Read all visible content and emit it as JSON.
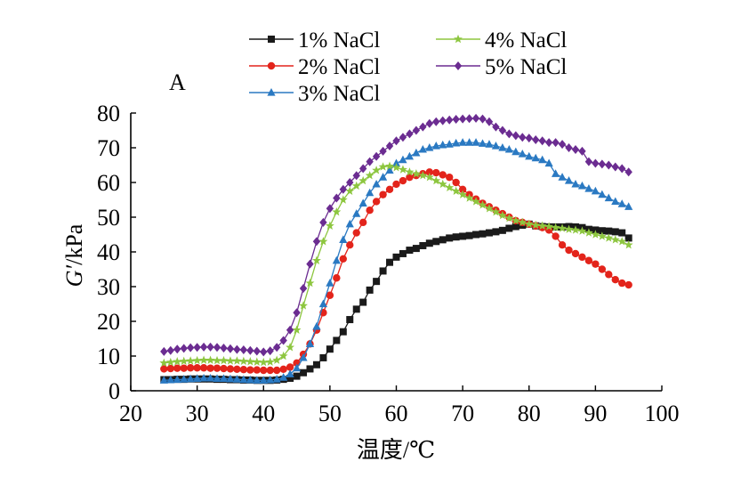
{
  "chart_data": {
    "type": "line",
    "panel_label": "A",
    "xlabel": "温度/℃",
    "ylabel_main": "G′",
    "ylabel_unit": "/kPa",
    "xlim": [
      20,
      100
    ],
    "ylim": [
      0,
      80
    ],
    "xticks": [
      20,
      30,
      40,
      50,
      60,
      70,
      80,
      90,
      100
    ],
    "yticks": [
      0,
      10,
      20,
      30,
      40,
      50,
      60,
      70,
      80
    ],
    "grid": false,
    "legend_position": "top, two columns",
    "x": [
      25,
      26,
      27,
      28,
      29,
      30,
      31,
      32,
      33,
      34,
      35,
      36,
      37,
      38,
      39,
      40,
      41,
      42,
      43,
      44,
      45,
      46,
      47,
      48,
      49,
      50,
      51,
      52,
      53,
      54,
      55,
      56,
      57,
      58,
      59,
      60,
      61,
      62,
      63,
      64,
      65,
      66,
      67,
      68,
      69,
      70,
      71,
      72,
      73,
      74,
      75,
      76,
      77,
      78,
      79,
      80,
      81,
      82,
      83,
      84,
      85,
      86,
      87,
      88,
      89,
      90,
      91,
      92,
      93,
      94,
      95
    ],
    "series": [
      {
        "name": "1% NaCl",
        "color": "#1a1a1a",
        "marker": "square",
        "values": [
          3.2,
          3.2,
          3.3,
          3.3,
          3.4,
          3.4,
          3.4,
          3.4,
          3.3,
          3.3,
          3.2,
          3.2,
          3.1,
          3.1,
          3.0,
          3.0,
          3.0,
          3.1,
          3.3,
          3.6,
          4.2,
          5.2,
          6.3,
          7.5,
          9.5,
          12.0,
          14.5,
          17.0,
          20.5,
          23.5,
          25.5,
          29.0,
          31.5,
          34.5,
          37.0,
          38.5,
          39.5,
          40.5,
          41.0,
          41.8,
          42.5,
          43.0,
          43.5,
          44.0,
          44.3,
          44.5,
          44.7,
          45.0,
          45.2,
          45.5,
          45.8,
          46.2,
          46.8,
          47.3,
          47.7,
          48.0,
          47.5,
          47.3,
          47.2,
          47.2,
          47.2,
          47.3,
          47.2,
          47.0,
          46.5,
          46.3,
          46.1,
          46.0,
          45.8,
          45.5,
          44.0
        ]
      },
      {
        "name": "2% NaCl",
        "color": "#e3241b",
        "marker": "circle",
        "values": [
          6.3,
          6.4,
          6.5,
          6.5,
          6.6,
          6.6,
          6.6,
          6.5,
          6.5,
          6.4,
          6.3,
          6.2,
          6.1,
          6.0,
          6.0,
          5.9,
          5.9,
          5.9,
          6.2,
          6.8,
          8.0,
          10.5,
          13.5,
          17.5,
          22.5,
          27.5,
          32.5,
          38.0,
          42.0,
          45.5,
          48.5,
          52.0,
          54.5,
          56.5,
          58.0,
          59.5,
          60.5,
          61.5,
          62.0,
          62.5,
          63.0,
          62.8,
          62.2,
          61.5,
          60.0,
          58.0,
          56.5,
          55.2,
          54.0,
          53.0,
          52.0,
          51.0,
          50.0,
          49.0,
          48.5,
          48.0,
          47.5,
          47.0,
          46.3,
          44.5,
          42.0,
          40.5,
          39.5,
          38.5,
          37.5,
          36.5,
          35.0,
          33.5,
          32.0,
          31.0,
          30.5
        ]
      },
      {
        "name": "3% NaCl",
        "color": "#2a79c2",
        "marker": "triangle",
        "values": [
          3.0,
          3.1,
          3.2,
          3.3,
          3.4,
          3.5,
          3.6,
          3.6,
          3.5,
          3.5,
          3.4,
          3.3,
          3.2,
          3.1,
          3.0,
          3.0,
          3.1,
          3.3,
          3.8,
          4.8,
          6.5,
          9.5,
          13.5,
          18.5,
          25.0,
          31.0,
          37.5,
          43.5,
          48.0,
          51.0,
          54.0,
          57.0,
          59.5,
          61.5,
          63.5,
          65.5,
          66.5,
          67.5,
          68.5,
          69.5,
          70.0,
          70.5,
          70.8,
          71.0,
          71.3,
          71.5,
          71.5,
          71.5,
          71.2,
          71.0,
          70.5,
          70.0,
          69.5,
          68.8,
          68.2,
          67.5,
          67.0,
          66.5,
          65.5,
          62.5,
          61.5,
          60.5,
          59.5,
          59.0,
          58.2,
          57.5,
          56.5,
          55.5,
          54.5,
          53.8,
          53.0
        ]
      },
      {
        "name": "4% NaCl",
        "color": "#8dc63f",
        "marker": "star",
        "values": [
          8.0,
          8.2,
          8.4,
          8.5,
          8.6,
          8.7,
          8.8,
          8.8,
          8.7,
          8.7,
          8.6,
          8.6,
          8.5,
          8.4,
          8.3,
          8.2,
          8.3,
          8.8,
          10.0,
          12.5,
          17.5,
          24.5,
          31.0,
          37.5,
          43.0,
          47.5,
          51.5,
          55.0,
          57.5,
          59.0,
          60.5,
          62.0,
          63.5,
          64.5,
          64.7,
          64.3,
          63.7,
          63.0,
          62.5,
          62.0,
          61.5,
          60.5,
          59.5,
          58.5,
          57.5,
          56.5,
          55.5,
          54.5,
          53.5,
          52.5,
          51.5,
          50.5,
          49.7,
          49.0,
          48.5,
          48.0,
          47.7,
          47.5,
          47.3,
          47.0,
          46.8,
          46.5,
          46.3,
          46.0,
          45.5,
          45.0,
          44.5,
          44.0,
          43.5,
          43.0,
          42.0
        ]
      },
      {
        "name": "5% NaCl",
        "color": "#6b2c91",
        "marker": "diamond",
        "values": [
          11.3,
          11.6,
          12.0,
          12.2,
          12.4,
          12.5,
          12.6,
          12.6,
          12.5,
          12.3,
          12.1,
          11.9,
          11.8,
          11.6,
          11.4,
          11.2,
          11.5,
          12.5,
          14.5,
          17.5,
          22.5,
          29.5,
          36.5,
          43.0,
          48.5,
          52.5,
          55.5,
          58.0,
          60.0,
          62.0,
          64.0,
          66.0,
          67.5,
          69.0,
          70.5,
          72.0,
          73.0,
          74.0,
          75.0,
          76.0,
          77.0,
          77.5,
          77.8,
          78.0,
          78.2,
          78.3,
          78.4,
          78.5,
          78.3,
          77.5,
          76.0,
          75.0,
          74.0,
          73.5,
          73.0,
          72.8,
          72.3,
          72.0,
          71.5,
          71.5,
          71.0,
          70.0,
          69.5,
          69.0,
          66.0,
          65.5,
          65.3,
          65.0,
          64.5,
          64.0,
          63.0
        ]
      }
    ]
  }
}
